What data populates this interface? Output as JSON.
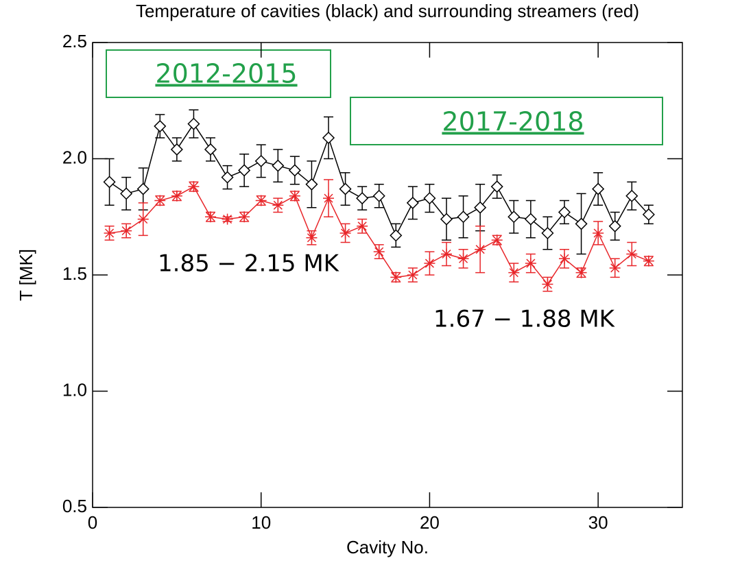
{
  "chart_data": {
    "type": "line",
    "title": "Temperature of cavities (black) and surrounding streamers (red)",
    "x_label": "Cavity No.",
    "y_label": "T [MK]",
    "x": [
      1,
      2,
      3,
      4,
      5,
      6,
      7,
      8,
      9,
      10,
      11,
      12,
      13,
      14,
      15,
      16,
      17,
      18,
      19,
      20,
      21,
      22,
      23,
      24,
      25,
      26,
      27,
      28,
      29,
      30,
      31,
      32,
      33
    ],
    "series": [
      {
        "name": "cavities",
        "color": "#000000",
        "marker": "diamond",
        "values": [
          1.9,
          1.85,
          1.87,
          2.14,
          2.04,
          2.15,
          2.04,
          1.92,
          1.95,
          1.99,
          1.97,
          1.95,
          1.89,
          2.09,
          1.87,
          1.83,
          1.84,
          1.67,
          1.81,
          1.83,
          1.74,
          1.75,
          1.79,
          1.88,
          1.75,
          1.74,
          1.68,
          1.77,
          1.72,
          1.87,
          1.71,
          1.84,
          1.76
        ],
        "errors": [
          0.1,
          0.07,
          0.09,
          0.05,
          0.05,
          0.06,
          0.05,
          0.05,
          0.07,
          0.07,
          0.07,
          0.06,
          0.1,
          0.09,
          0.07,
          0.05,
          0.05,
          0.05,
          0.07,
          0.06,
          0.09,
          0.09,
          0.1,
          0.05,
          0.07,
          0.08,
          0.07,
          0.05,
          0.13,
          0.07,
          0.06,
          0.06,
          0.04
        ]
      },
      {
        "name": "surrounding streamers",
        "color": "#e8262a",
        "marker": "asterisk",
        "values": [
          1.68,
          1.69,
          1.74,
          1.82,
          1.84,
          1.88,
          1.75,
          1.74,
          1.75,
          1.82,
          1.8,
          1.84,
          1.66,
          1.83,
          1.68,
          1.71,
          1.6,
          1.49,
          1.5,
          1.55,
          1.59,
          1.57,
          1.61,
          1.65,
          1.51,
          1.55,
          1.46,
          1.57,
          1.51,
          1.68,
          1.53,
          1.59,
          1.56
        ],
        "errors": [
          0.03,
          0.03,
          0.07,
          0.02,
          0.02,
          0.02,
          0.02,
          0.01,
          0.02,
          0.02,
          0.03,
          0.02,
          0.03,
          0.08,
          0.04,
          0.03,
          0.03,
          0.02,
          0.03,
          0.05,
          0.05,
          0.04,
          0.1,
          0.02,
          0.04,
          0.04,
          0.03,
          0.04,
          0.02,
          0.05,
          0.04,
          0.05,
          0.02
        ]
      }
    ],
    "xlim": [
      0,
      35
    ],
    "xticks": [
      0,
      10,
      20,
      30
    ],
    "ylim": [
      0.5,
      2.5
    ],
    "yticks": [
      0.5,
      {
        "value": 1,
        "label": "1.0"
      },
      1.5,
      {
        "value": 2,
        "label": "2.0"
      },
      2.5
    ],
    "annotations": [
      "2012-2015",
      "2017-2018",
      "1.85 − 2.15 MK",
      "1.67 − 1.88 MK"
    ]
  }
}
